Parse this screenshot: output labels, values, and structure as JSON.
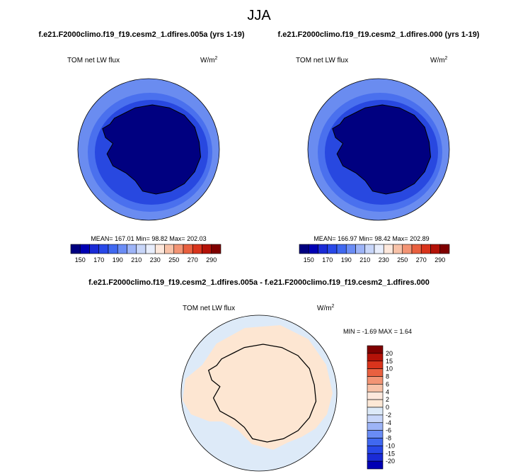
{
  "title": "JJA",
  "panels": [
    {
      "case": "f.e21.F2000climo.f19_f19.cesm2_1.dfires.005a (yrs 1-19)",
      "variable": "TOM net LW flux",
      "units": "W/m",
      "units_power": "2",
      "stats": "MEAN= 167.01  Min=  98.82  Max= 202.03"
    },
    {
      "case": "f.e21.F2000climo.f19_f19.cesm2_1.dfires.000 (yrs 1-19)",
      "variable": "TOM net LW flux",
      "units": "W/m",
      "units_power": "2",
      "stats": "MEAN= 166.97  Min=  98.42  Max= 202.89"
    }
  ],
  "difference": {
    "case": "f.e21.F2000climo.f19_f19.cesm2_1.dfires.005a - f.e21.F2000climo.f19_f19.cesm2_1.dfires.000",
    "variable": "TOM net LW flux",
    "units": "W/m",
    "units_power": "2",
    "stats": "MIN = -1.69 MAX =  1.64"
  },
  "colorbar": {
    "labels": [
      "150",
      "170",
      "190",
      "210",
      "230",
      "250",
      "270",
      "290"
    ],
    "colors": [
      "#000080",
      "#0000b4",
      "#1a2bd6",
      "#2848e8",
      "#4068f0",
      "#6a8cf5",
      "#9db4f7",
      "#c8d6f9",
      "#e8eefc",
      "#fde8dc",
      "#f8c2a8",
      "#f39474",
      "#e9603f",
      "#d9341c",
      "#b41208",
      "#7f0000"
    ]
  },
  "diff_colorbar": {
    "labels": [
      "20",
      "15",
      "10",
      "8",
      "6",
      "4",
      "2",
      "0",
      "-2",
      "-4",
      "-6",
      "-8",
      "-10",
      "-15",
      "-20"
    ],
    "colors": [
      "#7f0000",
      "#b41208",
      "#d9341c",
      "#e9603f",
      "#f39474",
      "#f8c2a8",
      "#fde8dc",
      "#fde8d6",
      "#ddeaf8",
      "#c8d6f9",
      "#9db4f7",
      "#6a8cf5",
      "#4068f0",
      "#2848e8",
      "#1a2bd6",
      "#0000b4"
    ]
  }
}
